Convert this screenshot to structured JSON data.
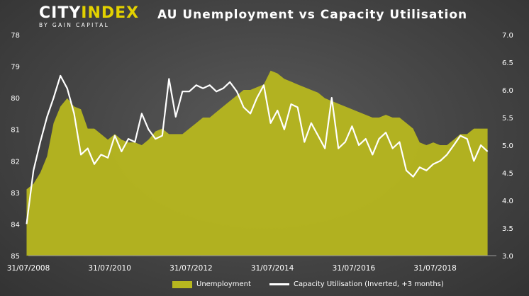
{
  "logo": {
    "brand_a": "CITY",
    "brand_b": "INDEX",
    "tagline": "BY GAIN CAPITAL"
  },
  "chart_data": {
    "type": "area+line",
    "title": "AU Unemployment vs Capacity Utilisation",
    "colors": {
      "area": "#b7b71f",
      "line": "#ffffff"
    },
    "left_axis": {
      "range": [
        78,
        85
      ],
      "inverted": true,
      "ticks": [
        "78",
        "79",
        "80",
        "81",
        "82",
        "83",
        "84",
        "85"
      ]
    },
    "right_axis": {
      "range": [
        3.0,
        7.0
      ],
      "ticks": [
        "7.0",
        "6.5",
        "6.0",
        "5.5",
        "5.0",
        "4.5",
        "4.0",
        "3.5",
        "3.0"
      ]
    },
    "x_ticks": [
      "31/07/2008",
      "31/07/2010",
      "31/07/2012",
      "31/07/2014",
      "31/07/2016",
      "31/07/2018"
    ],
    "x_range": [
      "2008-07-31",
      "2019-11-30"
    ],
    "series": [
      {
        "name": "Unemployment",
        "axis": "right",
        "x": [
          "2008-07",
          "2008-09",
          "2008-11",
          "2009-01",
          "2009-03",
          "2009-05",
          "2009-07",
          "2009-09",
          "2009-11",
          "2010-01",
          "2010-03",
          "2010-05",
          "2010-07",
          "2010-09",
          "2010-11",
          "2011-01",
          "2011-03",
          "2011-05",
          "2011-07",
          "2011-09",
          "2011-11",
          "2012-01",
          "2012-03",
          "2012-05",
          "2012-07",
          "2012-09",
          "2012-11",
          "2013-01",
          "2013-03",
          "2013-05",
          "2013-07",
          "2013-09",
          "2013-11",
          "2014-01",
          "2014-03",
          "2014-05",
          "2014-07",
          "2014-09",
          "2014-11",
          "2015-01",
          "2015-03",
          "2015-05",
          "2015-07",
          "2015-09",
          "2015-11",
          "2016-01",
          "2016-03",
          "2016-05",
          "2016-07",
          "2016-09",
          "2016-11",
          "2017-01",
          "2017-03",
          "2017-05",
          "2017-07",
          "2017-09",
          "2017-11",
          "2018-01",
          "2018-03",
          "2018-05",
          "2018-07",
          "2018-09",
          "2018-11",
          "2019-01",
          "2019-03",
          "2019-05",
          "2019-07",
          "2019-09",
          "2019-11"
        ],
        "values": [
          4.2,
          4.3,
          4.5,
          4.8,
          5.4,
          5.7,
          5.85,
          5.7,
          5.65,
          5.3,
          5.3,
          5.2,
          5.1,
          5.2,
          5.1,
          5.05,
          5.05,
          5.0,
          5.1,
          5.25,
          5.3,
          5.2,
          5.2,
          5.2,
          5.3,
          5.4,
          5.5,
          5.5,
          5.6,
          5.7,
          5.8,
          5.9,
          6.0,
          6.0,
          6.05,
          6.1,
          6.35,
          6.3,
          6.2,
          6.15,
          6.1,
          6.05,
          6.0,
          5.95,
          5.85,
          5.8,
          5.75,
          5.7,
          5.65,
          5.6,
          5.55,
          5.5,
          5.5,
          5.55,
          5.5,
          5.5,
          5.4,
          5.3,
          5.05,
          5.0,
          5.05,
          5.0,
          5.0,
          5.1,
          5.2,
          5.2,
          5.3,
          5.3,
          5.3
        ]
      },
      {
        "name": "Capacity Utilisation (Inverted, +3 months)",
        "axis": "left",
        "x": [
          "2008-07",
          "2008-09",
          "2008-11",
          "2009-01",
          "2009-03",
          "2009-05",
          "2009-07",
          "2009-09",
          "2009-11",
          "2010-01",
          "2010-03",
          "2010-05",
          "2010-07",
          "2010-09",
          "2010-11",
          "2011-01",
          "2011-03",
          "2011-05",
          "2011-07",
          "2011-09",
          "2011-11",
          "2012-01",
          "2012-03",
          "2012-05",
          "2012-07",
          "2012-09",
          "2012-11",
          "2013-01",
          "2013-03",
          "2013-05",
          "2013-07",
          "2013-09",
          "2013-11",
          "2014-01",
          "2014-03",
          "2014-05",
          "2014-07",
          "2014-09",
          "2014-11",
          "2015-01",
          "2015-03",
          "2015-05",
          "2015-07",
          "2015-09",
          "2015-11",
          "2016-01",
          "2016-03",
          "2016-05",
          "2016-07",
          "2016-09",
          "2016-11",
          "2017-01",
          "2017-03",
          "2017-05",
          "2017-07",
          "2017-09",
          "2017-11",
          "2018-01",
          "2018-03",
          "2018-05",
          "2018-07",
          "2018-09",
          "2018-11",
          "2019-01",
          "2019-03",
          "2019-05",
          "2019-07",
          "2019-09",
          "2019-11"
        ],
        "values": [
          84.0,
          82.3,
          81.4,
          80.6,
          80.0,
          79.3,
          79.7,
          80.5,
          81.8,
          81.6,
          82.1,
          81.8,
          81.9,
          81.2,
          81.7,
          81.3,
          81.4,
          80.5,
          81.0,
          81.3,
          81.2,
          79.4,
          80.6,
          79.8,
          79.8,
          79.6,
          79.7,
          79.6,
          79.8,
          79.7,
          79.5,
          79.8,
          80.3,
          80.5,
          80.0,
          79.6,
          80.8,
          80.4,
          81.0,
          80.2,
          80.3,
          81.4,
          80.8,
          81.2,
          81.6,
          80.0,
          81.6,
          81.4,
          80.9,
          81.5,
          81.3,
          81.8,
          81.3,
          81.1,
          81.6,
          81.4,
          82.3,
          82.5,
          82.2,
          82.3,
          82.1,
          82.0,
          81.8,
          81.5,
          81.2,
          81.3,
          82.0,
          81.5,
          81.7
        ]
      }
    ]
  }
}
